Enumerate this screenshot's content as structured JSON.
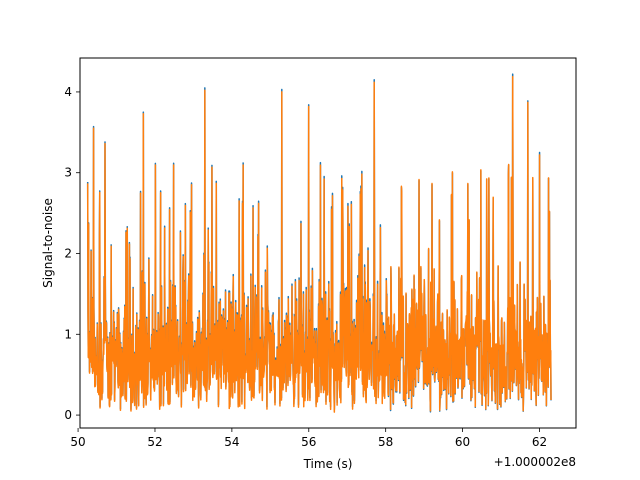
{
  "chart_data": {
    "type": "line",
    "title": "",
    "xlabel": "Time (s)",
    "ylabel": "Signal-to-noise",
    "x_offset_label": "+1.000002e8",
    "xlim": [
      50.05,
      62.95
    ],
    "ylim": [
      -0.16,
      4.42
    ],
    "x_ticks": [
      50,
      52,
      54,
      56,
      58,
      60,
      62
    ],
    "y_ticks": [
      0,
      1,
      2,
      3,
      4
    ],
    "x_tick_labels": [
      "50",
      "52",
      "54",
      "56",
      "58",
      "60",
      "62"
    ],
    "y_tick_labels": [
      "0",
      "1",
      "2",
      "3",
      "4"
    ],
    "grid": false,
    "legend": null,
    "x_range": [
      50.25,
      62.3
    ],
    "series": [
      {
        "color": "#1f77b4",
        "values_summary": "dense SNR time series between ~0.05 and ~4.2",
        "peaks": [
          [
            50.4,
            3.57
          ],
          [
            50.7,
            3.38
          ],
          [
            51.7,
            3.75
          ],
          [
            53.3,
            4.05
          ],
          [
            55.3,
            4.03
          ],
          [
            56.0,
            3.84
          ],
          [
            57.7,
            4.15
          ],
          [
            61.3,
            4.22
          ],
          [
            61.7,
            3.89
          ],
          [
            62.0,
            3.25
          ]
        ]
      },
      {
        "color": "#ff7f0e",
        "values_summary": "dense SNR time series between ~0.05 and ~4.2",
        "peaks": [
          [
            50.4,
            3.55
          ],
          [
            50.7,
            3.36
          ],
          [
            51.7,
            3.73
          ],
          [
            53.3,
            4.02
          ],
          [
            55.3,
            4.0
          ],
          [
            56.0,
            3.82
          ],
          [
            57.7,
            4.12
          ],
          [
            61.3,
            4.19
          ],
          [
            61.7,
            3.87
          ],
          [
            62.0,
            3.22
          ]
        ]
      }
    ]
  }
}
